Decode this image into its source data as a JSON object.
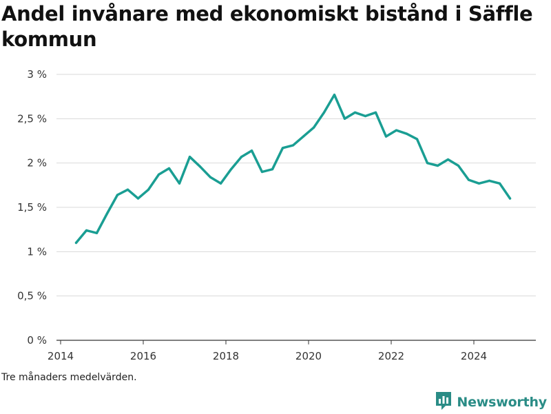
{
  "chart_data": {
    "type": "line",
    "title": "Andel invånare med ekonomiskt bistånd i Säffle kommun",
    "xlabel": "",
    "ylabel": "",
    "x_ticks": [
      "2014",
      "2016",
      "2018",
      "2020",
      "2022",
      "2024"
    ],
    "y_ticks": [
      "0 %",
      "0,5 %",
      "1 %",
      "1,5 %",
      "2 %",
      "2,5 %",
      "3 %"
    ],
    "xlim": [
      2013.9,
      2025.5
    ],
    "ylim": [
      0,
      3
    ],
    "grid": "horizontal",
    "legend": "none",
    "line_color": "#1a9e93",
    "series": [
      {
        "x": [
          2014.375,
          2014.625,
          2014.875,
          2015.125,
          2015.375,
          2015.625,
          2015.875,
          2016.125,
          2016.375,
          2016.625,
          2016.875,
          2017.125,
          2017.375,
          2017.625,
          2017.875,
          2018.125,
          2018.375,
          2018.625,
          2018.875,
          2019.125,
          2019.375,
          2019.625,
          2019.875,
          2020.125,
          2020.375,
          2020.625,
          2020.875,
          2021.125,
          2021.375,
          2021.625,
          2021.875,
          2022.125,
          2022.375,
          2022.625,
          2022.875,
          2023.125,
          2023.375,
          2023.625,
          2023.875,
          2024.125,
          2024.375,
          2024.625,
          2024.875
        ],
        "values": [
          1.1,
          1.24,
          1.21,
          1.43,
          1.64,
          1.7,
          1.6,
          1.7,
          1.87,
          1.94,
          1.77,
          2.07,
          1.96,
          1.84,
          1.77,
          1.93,
          2.07,
          2.14,
          1.9,
          1.93,
          2.17,
          2.2,
          2.3,
          2.4,
          2.57,
          2.77,
          2.5,
          2.57,
          2.53,
          2.57,
          2.3,
          2.37,
          2.33,
          2.27,
          2.0,
          1.97,
          2.04,
          1.97,
          1.81,
          1.77,
          1.8,
          1.77,
          1.6
        ]
      }
    ]
  },
  "footnote": "Tre månaders medelvärden.",
  "brand": {
    "name": "Newsworthy",
    "icon": "newsworthy-logo-icon",
    "color": "#2a8c86"
  }
}
